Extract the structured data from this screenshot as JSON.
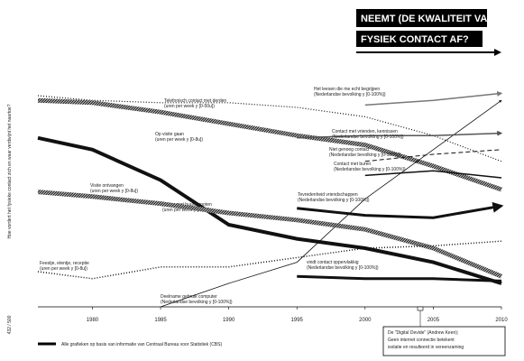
{
  "side_text": "Hoe vordert het fysieke contact zich en waar verdwijnt het naartoe?",
  "page_number": "432 / 500",
  "chart_data": {
    "type": "line",
    "title_lines": [
      "NEEMT (DE KWALITEIT VAN)",
      "FYSIEK CONTACT AF?"
    ],
    "x": [
      1976,
      1980,
      1985,
      1990,
      1995,
      2000,
      2005,
      2010
    ],
    "xlim": [
      1976,
      2010
    ],
    "xticks": [
      1980,
      1985,
      1990,
      1995,
      2000,
      2005,
      2010
    ],
    "ylim": [
      0,
      100
    ],
    "series": [
      {
        "name": "Het leesen die me echt begrijpen",
        "description": "(Nederlandse bevolking y [0-100%])",
        "color": "#777777",
        "style": "solid",
        "width": 1.5,
        "arrow": true,
        "values": [
          null,
          null,
          null,
          null,
          null,
          86,
          88,
          91
        ]
      },
      {
        "name": "Telefonisch contact met derden",
        "description": "(uren per week y [0-50u])",
        "color": "#111111",
        "style": "dotted",
        "width": 1.2,
        "arrow": false,
        "values": [
          90,
          88,
          87,
          87,
          85,
          81,
          73,
          62
        ]
      },
      {
        "name": "Op visite gaan",
        "description": "(uren per week y [0-8u])",
        "color": "#111111",
        "style": "striped",
        "width": 5,
        "arrow": false,
        "values": [
          88,
          87,
          83,
          78,
          73,
          69,
          60,
          50
        ]
      },
      {
        "name": "praten met buurtgenoten",
        "description": "(uren per week y [0-8u])",
        "color": "#111111",
        "style": "solid",
        "width": 4,
        "arrow": false,
        "values": [
          72,
          67,
          54,
          35,
          29,
          25,
          19,
          10
        ]
      },
      {
        "name": "Visite ontvangen",
        "description": "(uren per week y [0-8u])",
        "color": "#111111",
        "style": "striped",
        "width": 5,
        "arrow": false,
        "values": [
          49,
          47,
          44,
          40,
          37,
          33,
          25,
          13
        ]
      },
      {
        "name": "Feestje, etentje, receptie",
        "description": "(uren per week y [0-8u])",
        "color": "#111111",
        "style": "dotted",
        "width": 1.5,
        "arrow": false,
        "values": [
          15,
          12,
          17,
          17,
          21,
          25,
          26,
          28
        ]
      },
      {
        "name": "Deelname gebruik computer",
        "description": "(Nederlandse bevolking y [0-100%])",
        "color": "#111111",
        "style": "solid",
        "width": 0.8,
        "arrow": true,
        "values": [
          null,
          null,
          0,
          10,
          19,
          46,
          67,
          88
        ]
      },
      {
        "name": "Contact met vrienden, kennissen",
        "description": "(Nederlandse bevolking y [0-100%])",
        "color": "#555555",
        "style": "solid",
        "width": 1.5,
        "arrow": true,
        "values": [
          null,
          null,
          null,
          null,
          72,
          73,
          73,
          74
        ]
      },
      {
        "name": "Niet genoeg contact",
        "description": "(Nederlandse bevolking y [0-100%])",
        "color": "#111111",
        "style": "dashed",
        "width": 1,
        "arrow": false,
        "values": [
          null,
          null,
          null,
          null,
          null,
          62,
          65,
          67
        ]
      },
      {
        "name": "Contact met buren",
        "description": "(Nederlandse bevolking y [0-100%])",
        "color": "#111111",
        "style": "solid",
        "width": 1.5,
        "arrow": false,
        "values": [
          null,
          null,
          null,
          null,
          null,
          56,
          58,
          55
        ]
      },
      {
        "name": "Tevredenheid vriendschappen",
        "description": "(Nederlandse bevolking y [0-100%])",
        "color": "#111111",
        "style": "solid",
        "width": 3,
        "arrow": true,
        "values": [
          null,
          null,
          null,
          null,
          42,
          39,
          38,
          43
        ]
      },
      {
        "name": "vindt contact oppervlakkig",
        "description": "(Nederlandse bevolking y [0-100%])",
        "color": "#111111",
        "style": "solid",
        "width": 3,
        "arrow": false,
        "values": [
          null,
          null,
          null,
          null,
          13,
          12,
          12,
          11
        ]
      }
    ],
    "source": "Alle grafieken op basis van informatie van Centraal Bureau voor Statistiek (CBS)",
    "note_lines": [
      "De \"Digital Devide\" (Andrew Keen);",
      "Geen internet connectie betekent",
      "isolatie en resulteerd in vereenzaming"
    ]
  }
}
